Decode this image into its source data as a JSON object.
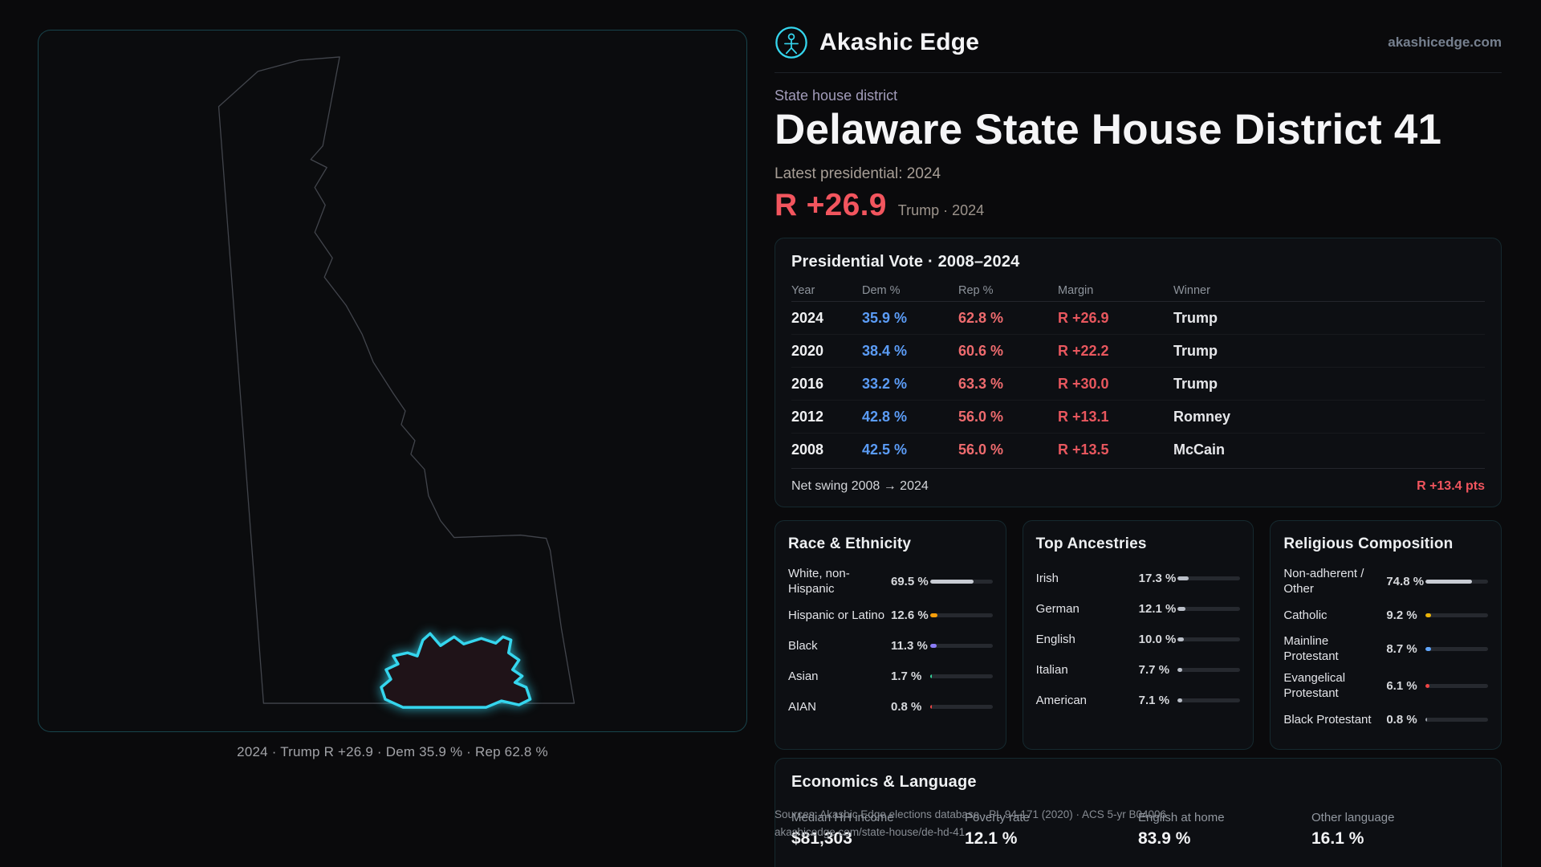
{
  "brand": {
    "name": "Akashic Edge",
    "domain": "akashicedge.com"
  },
  "hero": {
    "eyebrow": "State house district",
    "title": "Delaware State House District 41",
    "latest_label": "Latest presidential: 2024",
    "margin": "R +26.9",
    "margin_context": "Trump · 2024"
  },
  "map": {
    "caption": "2024 · Trump R +26.9 · Dem 35.9 % · Rep 62.8 %"
  },
  "presidential": {
    "title": "Presidential Vote · 2008–2024",
    "columns": [
      "Year",
      "Dem %",
      "Rep %",
      "Margin",
      "Winner"
    ],
    "rows": [
      {
        "year": "2024",
        "dem": "35.9 %",
        "rep": "62.8 %",
        "margin": "R +26.9",
        "winner": "Trump"
      },
      {
        "year": "2020",
        "dem": "38.4 %",
        "rep": "60.6 %",
        "margin": "R +22.2",
        "winner": "Trump"
      },
      {
        "year": "2016",
        "dem": "33.2 %",
        "rep": "63.3 %",
        "margin": "R +30.0",
        "winner": "Trump"
      },
      {
        "year": "2012",
        "dem": "42.8 %",
        "rep": "56.0 %",
        "margin": "R +13.1",
        "winner": "Romney"
      },
      {
        "year": "2008",
        "dem": "42.5 %",
        "rep": "56.0 %",
        "margin": "R +13.5",
        "winner": "McCain"
      }
    ],
    "net_swing_label": "Net swing 2008 → 2024",
    "net_swing_value": "R +13.4 pts"
  },
  "race": {
    "title": "Race & Ethnicity",
    "rows": [
      {
        "label": "White, non-Hispanic",
        "value": "69.5 %",
        "pct": 69.5,
        "color": "#c8ccd4"
      },
      {
        "label": "Hispanic or Latino",
        "value": "12.6 %",
        "pct": 12.6,
        "color": "#f59e0b"
      },
      {
        "label": "Black",
        "value": "11.3 %",
        "pct": 11.3,
        "color": "#8b7cf6"
      },
      {
        "label": "Asian",
        "value": "1.7 %",
        "pct": 1.7,
        "color": "#34d399"
      },
      {
        "label": "AIAN",
        "value": "0.8 %",
        "pct": 0.8,
        "color": "#ef4444"
      }
    ]
  },
  "ancestries": {
    "title": "Top Ancestries",
    "rows": [
      {
        "label": "Irish",
        "value": "17.3 %",
        "pct": 17.3,
        "color": "#b9bec7"
      },
      {
        "label": "German",
        "value": "12.1 %",
        "pct": 12.1,
        "color": "#b9bec7"
      },
      {
        "label": "English",
        "value": "10.0 %",
        "pct": 10.0,
        "color": "#b9bec7"
      },
      {
        "label": "Italian",
        "value": "7.7 %",
        "pct": 7.7,
        "color": "#b9bec7"
      },
      {
        "label": "American",
        "value": "7.1 %",
        "pct": 7.1,
        "color": "#b9bec7"
      }
    ]
  },
  "religion": {
    "title": "Religious Composition",
    "rows": [
      {
        "label": "Non-adherent / Other",
        "value": "74.8 %",
        "pct": 74.8,
        "color": "#c8ccd4"
      },
      {
        "label": "Catholic",
        "value": "9.2 %",
        "pct": 9.2,
        "color": "#eab308"
      },
      {
        "label": "Mainline Protestant",
        "value": "8.7 %",
        "pct": 8.7,
        "color": "#60a5fa"
      },
      {
        "label": "Evangelical Protestant",
        "value": "6.1 %",
        "pct": 6.1,
        "color": "#ef4444"
      },
      {
        "label": "Black Protestant",
        "value": "0.8 %",
        "pct": 0.8,
        "color": "#9aa0a8"
      }
    ]
  },
  "economics": {
    "title": "Economics & Language",
    "stats": [
      {
        "label": "Median HH income",
        "value": "$81,303"
      },
      {
        "label": "Poverty rate",
        "value": "12.1 %"
      },
      {
        "label": "English at home",
        "value": "83.9 %"
      },
      {
        "label": "Other language",
        "value": "16.1 %"
      }
    ]
  },
  "sources": {
    "line1": "Sources: Akashic Edge elections database · PL 94-171 (2020) · ACS 5-yr B04006",
    "line2": "akashicedge.com/state-house/de-hd-41"
  },
  "icons": {
    "logo": "akashic-circle-figure-icon"
  },
  "colors": {
    "accent_cyan": "#35d6ee",
    "dem_blue": "#5b9cf6",
    "rep_red": "#ee6b6e",
    "margin_red": "#f2555e",
    "page_bg": "#0a0a0c",
    "card_bg": "#0d0f13"
  }
}
